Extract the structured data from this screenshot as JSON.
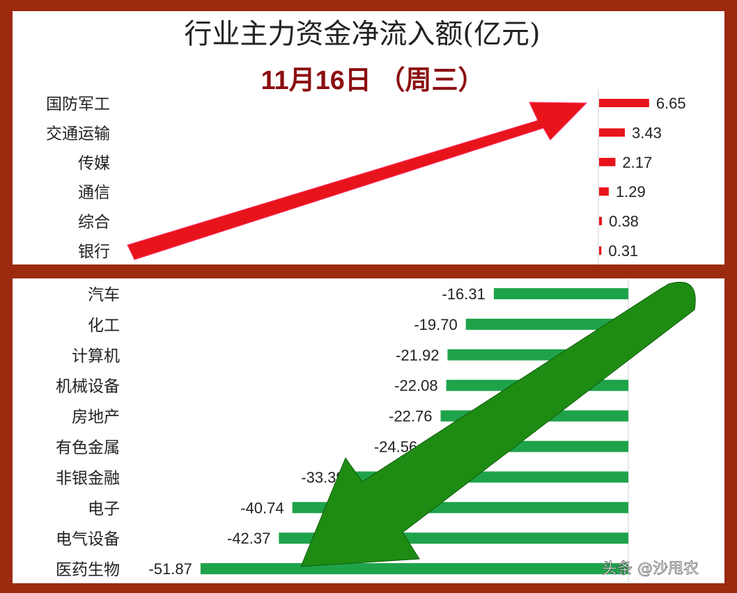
{
  "chart_data": {
    "type": "bar",
    "orientation": "horizontal",
    "title": "行业主力资金净流入额(亿元)",
    "subtitle": "11月16日 （周三）",
    "colors": {
      "positive": "#e8141b",
      "negative": "#1fa34a",
      "arrow_up": "#e8141b",
      "arrow_down": "#1e8c12",
      "frame": "#9b2a0e"
    },
    "inflow": {
      "categories": [
        "国防军工",
        "交通运输",
        "传媒",
        "通信",
        "综合",
        "银行"
      ],
      "values": [
        6.65,
        3.43,
        2.17,
        1.29,
        0.38,
        0.31
      ],
      "labels": [
        "6.65",
        "3.43",
        "2.17",
        "1.29",
        "0.38",
        "0.31"
      ]
    },
    "outflow": {
      "categories": [
        "汽车",
        "化工",
        "计算机",
        "机械设备",
        "房地产",
        "有色金属",
        "非银金融",
        "电子",
        "电气设备",
        "医药生物"
      ],
      "values": [
        -16.31,
        -19.7,
        -21.92,
        -22.08,
        -22.76,
        -24.56,
        -33.39,
        -40.74,
        -42.37,
        -51.87
      ],
      "labels": [
        "-16.31",
        "-19.70",
        "-21.92",
        "-22.08",
        "-22.76",
        "-24.56",
        "-33.39",
        "-40.74",
        "-42.37",
        "-51.87"
      ]
    },
    "grid": false
  },
  "watermark": "头条 @沙甩农"
}
